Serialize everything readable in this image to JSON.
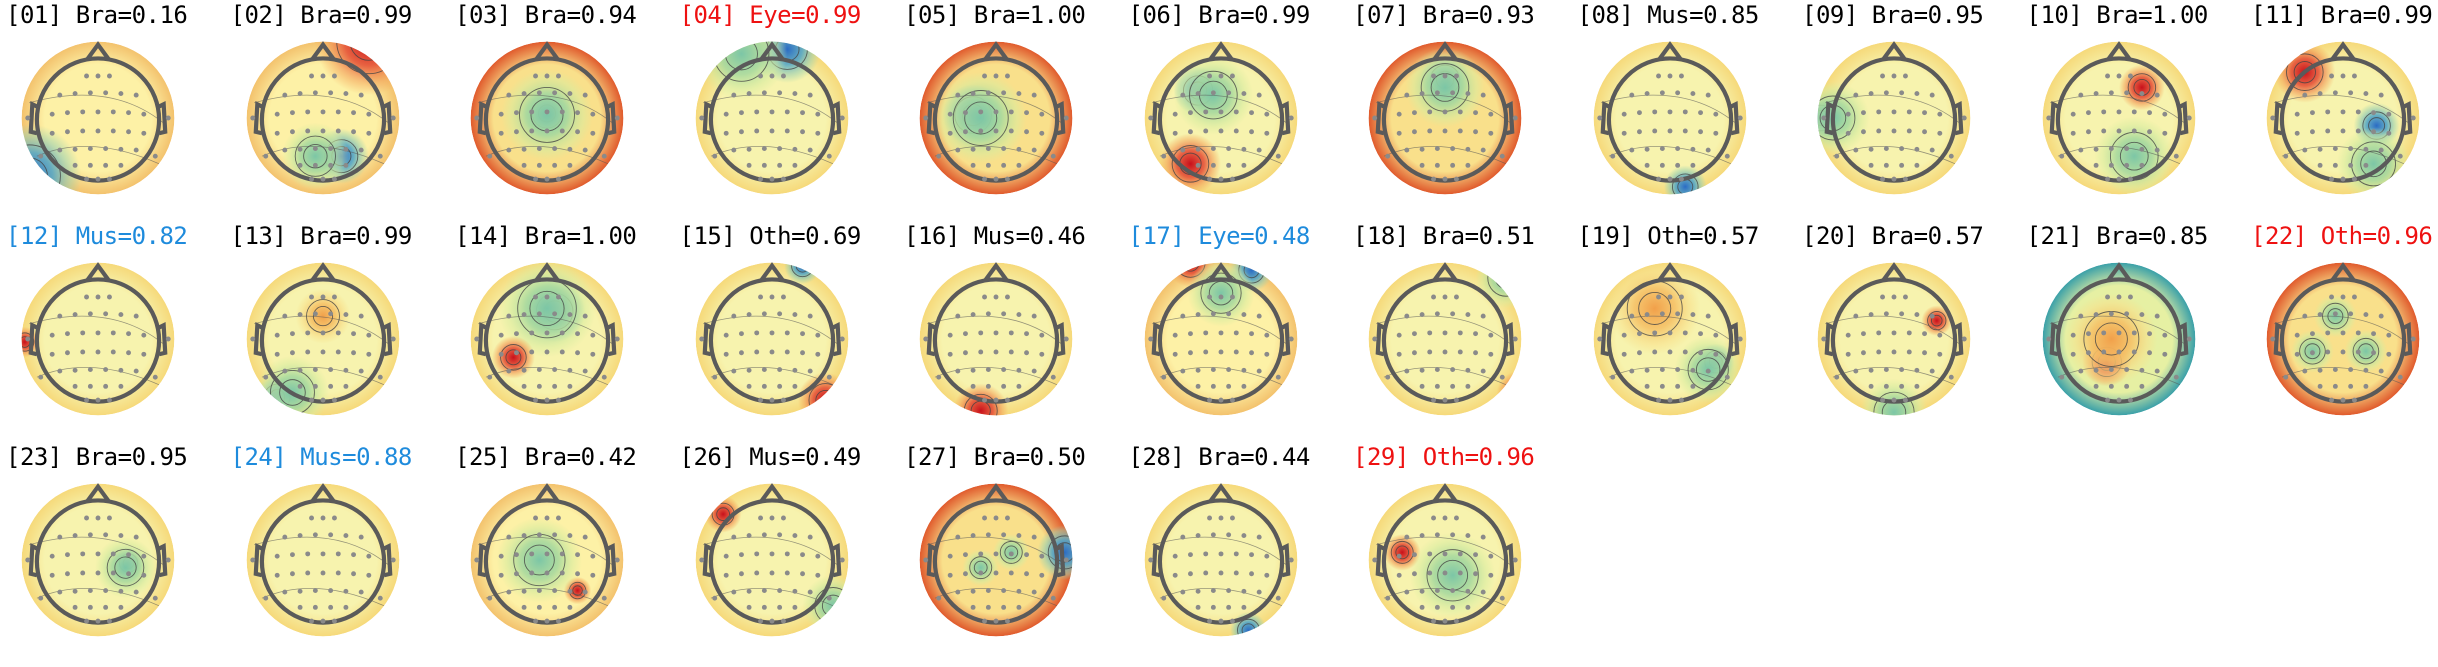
{
  "components": [
    {
      "idx": "[01]",
      "cls": "Bra",
      "p": "0.16",
      "color": "black",
      "theme": "warm",
      "blobs": [
        {
          "c": "blue",
          "dx": 0.05,
          "dy": 0.88,
          "s": 0.34
        }
      ]
    },
    {
      "idx": "[02]",
      "cls": "Bra",
      "p": "0.99",
      "color": "black",
      "theme": "warm",
      "blobs": [
        {
          "c": "red",
          "dx": 0.8,
          "dy": 0.0,
          "s": 0.35
        },
        {
          "c": "blue",
          "dx": 0.62,
          "dy": 0.75,
          "s": 0.18
        },
        {
          "c": "green",
          "dx": 0.45,
          "dy": 0.75,
          "s": 0.22
        }
      ]
    },
    {
      "idx": "[03]",
      "cls": "Bra",
      "p": "0.94",
      "color": "black",
      "theme": "hot",
      "blobs": [
        {
          "c": "blue",
          "dx": 0.5,
          "dy": 0.47,
          "s": 0.16
        },
        {
          "c": "green",
          "dx": 0.5,
          "dy": 0.48,
          "s": 0.3
        }
      ]
    },
    {
      "idx": "[04]",
      "cls": "Eye",
      "p": "0.99",
      "color": "red",
      "theme": "pale",
      "blobs": [
        {
          "c": "blue",
          "dx": 0.6,
          "dy": 0.05,
          "s": 0.22
        },
        {
          "c": "green",
          "dx": 0.3,
          "dy": 0.08,
          "s": 0.3
        }
      ]
    },
    {
      "idx": "[05]",
      "cls": "Bra",
      "p": "1.00",
      "color": "black",
      "theme": "hot",
      "blobs": [
        {
          "c": "blue",
          "dx": 0.35,
          "dy": 0.48,
          "s": 0.2
        },
        {
          "c": "green",
          "dx": 0.4,
          "dy": 0.5,
          "s": 0.3
        }
      ]
    },
    {
      "idx": "[06]",
      "cls": "Bra",
      "p": "0.99",
      "color": "black",
      "theme": "pale",
      "blobs": [
        {
          "c": "blue",
          "dx": 0.35,
          "dy": 0.32,
          "s": 0.16
        },
        {
          "c": "green",
          "dx": 0.45,
          "dy": 0.35,
          "s": 0.26
        },
        {
          "c": "red",
          "dx": 0.3,
          "dy": 0.8,
          "s": 0.2
        }
      ]
    },
    {
      "idx": "[07]",
      "cls": "Bra",
      "p": "0.93",
      "color": "black",
      "theme": "hot",
      "blobs": [
        {
          "c": "blue",
          "dx": 0.5,
          "dy": 0.25,
          "s": 0.16
        },
        {
          "c": "green",
          "dx": 0.5,
          "dy": 0.3,
          "s": 0.26
        }
      ]
    },
    {
      "idx": "[08]",
      "cls": "Mus",
      "p": "0.85",
      "color": "black",
      "theme": "pale",
      "blobs": [
        {
          "c": "blue",
          "dx": 0.6,
          "dy": 0.95,
          "s": 0.14
        }
      ]
    },
    {
      "idx": "[09]",
      "cls": "Bra",
      "p": "0.95",
      "color": "black",
      "theme": "pale",
      "blobs": [
        {
          "c": "blue",
          "dx": 0.02,
          "dy": 0.5,
          "s": 0.14
        },
        {
          "c": "green",
          "dx": 0.1,
          "dy": 0.5,
          "s": 0.24
        }
      ]
    },
    {
      "idx": "[10]",
      "cls": "Bra",
      "p": "1.00",
      "color": "black",
      "theme": "pale",
      "blobs": [
        {
          "c": "red",
          "dx": 0.65,
          "dy": 0.3,
          "s": 0.15
        },
        {
          "c": "green",
          "dx": 0.6,
          "dy": 0.75,
          "s": 0.26
        }
      ]
    },
    {
      "idx": "[11]",
      "cls": "Bra",
      "p": "0.99",
      "color": "black",
      "theme": "pale",
      "blobs": [
        {
          "c": "red",
          "dx": 0.25,
          "dy": 0.2,
          "s": 0.2
        },
        {
          "c": "blue",
          "dx": 0.72,
          "dy": 0.55,
          "s": 0.15
        },
        {
          "c": "green",
          "dx": 0.7,
          "dy": 0.8,
          "s": 0.24
        }
      ]
    },
    {
      "idx": "[12]",
      "cls": "Mus",
      "p": "0.82",
      "color": "blue",
      "theme": "pale",
      "blobs": [
        {
          "c": "red",
          "dx": 0.02,
          "dy": 0.52,
          "s": 0.1
        }
      ]
    },
    {
      "idx": "[13]",
      "cls": "Bra",
      "p": "0.99",
      "color": "black",
      "theme": "pale",
      "blobs": [
        {
          "c": "blue",
          "dx": 0.2,
          "dy": 0.88,
          "s": 0.14
        },
        {
          "c": "green",
          "dx": 0.3,
          "dy": 0.85,
          "s": 0.24
        },
        {
          "c": "orange",
          "dx": 0.5,
          "dy": 0.35,
          "s": 0.18
        }
      ]
    },
    {
      "idx": "[14]",
      "cls": "Bra",
      "p": "1.00",
      "color": "black",
      "theme": "pale",
      "blobs": [
        {
          "c": "blue",
          "dx": 0.55,
          "dy": 0.32,
          "s": 0.2
        },
        {
          "c": "green",
          "dx": 0.5,
          "dy": 0.3,
          "s": 0.32
        },
        {
          "c": "red",
          "dx": 0.28,
          "dy": 0.62,
          "s": 0.14
        }
      ]
    },
    {
      "idx": "[15]",
      "cls": "Oth",
      "p": "0.69",
      "color": "black",
      "theme": "pale",
      "blobs": [
        {
          "c": "blue",
          "dx": 0.7,
          "dy": 0.02,
          "s": 0.12
        },
        {
          "c": "red",
          "dx": 0.85,
          "dy": 0.9,
          "s": 0.18
        }
      ]
    },
    {
      "idx": "[16]",
      "cls": "Mus",
      "p": "0.46",
      "color": "black",
      "theme": "pale",
      "blobs": [
        {
          "c": "red",
          "dx": 0.4,
          "dy": 0.97,
          "s": 0.18
        }
      ]
    },
    {
      "idx": "[17]",
      "cls": "Eye",
      "p": "0.48",
      "color": "blue",
      "theme": "warm",
      "blobs": [
        {
          "c": "red",
          "dx": 0.3,
          "dy": 0.0,
          "s": 0.16
        },
        {
          "c": "blue",
          "dx": 0.7,
          "dy": 0.05,
          "s": 0.14
        },
        {
          "c": "green",
          "dx": 0.5,
          "dy": 0.2,
          "s": 0.22
        }
      ]
    },
    {
      "idx": "[18]",
      "cls": "Bra",
      "p": "0.51",
      "color": "black",
      "theme": "pale",
      "blobs": [
        {
          "c": "red",
          "dx": 0.98,
          "dy": 0.85,
          "s": 0.14
        },
        {
          "c": "green",
          "dx": 0.9,
          "dy": 0.1,
          "s": 0.2
        }
      ]
    },
    {
      "idx": "[19]",
      "cls": "Oth",
      "p": "0.57",
      "color": "black",
      "theme": "pale",
      "blobs": [
        {
          "c": "blue",
          "dx": 0.8,
          "dy": 0.65,
          "s": 0.12
        },
        {
          "c": "green",
          "dx": 0.75,
          "dy": 0.7,
          "s": 0.22
        },
        {
          "c": "orange",
          "dx": 0.4,
          "dy": 0.3,
          "s": 0.3
        }
      ]
    },
    {
      "idx": "[20]",
      "cls": "Bra",
      "p": "0.57",
      "color": "black",
      "theme": "pale",
      "blobs": [
        {
          "c": "red",
          "dx": 0.78,
          "dy": 0.38,
          "s": 0.1
        },
        {
          "c": "green",
          "dx": 0.5,
          "dy": 0.98,
          "s": 0.22
        }
      ]
    },
    {
      "idx": "[21]",
      "cls": "Bra",
      "p": "0.85",
      "color": "black",
      "theme": "cool",
      "blobs": [
        {
          "c": "red",
          "dx": 0.42,
          "dy": 0.65,
          "s": 0.16
        },
        {
          "c": "orange",
          "dx": 0.45,
          "dy": 0.5,
          "s": 0.3
        }
      ]
    },
    {
      "idx": "[22]",
      "cls": "Oth",
      "p": "0.96",
      "color": "red",
      "theme": "hot",
      "blobs": [
        {
          "c": "green",
          "dx": 0.3,
          "dy": 0.58,
          "s": 0.14
        },
        {
          "c": "green",
          "dx": 0.65,
          "dy": 0.58,
          "s": 0.14
        },
        {
          "c": "green",
          "dx": 0.45,
          "dy": 0.35,
          "s": 0.14
        }
      ]
    },
    {
      "idx": "[23]",
      "cls": "Bra",
      "p": "0.95",
      "color": "black",
      "theme": "pale",
      "blobs": [
        {
          "c": "blue",
          "dx": 0.7,
          "dy": 0.52,
          "s": 0.1
        },
        {
          "c": "green",
          "dx": 0.68,
          "dy": 0.55,
          "s": 0.2
        }
      ]
    },
    {
      "idx": "[24]",
      "cls": "Mus",
      "p": "0.88",
      "color": "blue",
      "theme": "pale",
      "blobs": [
        {
          "c": "red",
          "dx": 0.95,
          "dy": 0.1,
          "s": 0.12
        }
      ]
    },
    {
      "idx": "[25]",
      "cls": "Bra",
      "p": "0.42",
      "color": "black",
      "theme": "warm",
      "blobs": [
        {
          "c": "red",
          "dx": 0.7,
          "dy": 0.7,
          "s": 0.09
        },
        {
          "c": "green",
          "dx": 0.45,
          "dy": 0.5,
          "s": 0.28
        }
      ]
    },
    {
      "idx": "[26]",
      "cls": "Mus",
      "p": "0.49",
      "color": "black",
      "theme": "pale",
      "blobs": [
        {
          "c": "red",
          "dx": 0.18,
          "dy": 0.2,
          "s": 0.12
        },
        {
          "c": "green",
          "dx": 0.9,
          "dy": 0.8,
          "s": 0.2
        }
      ]
    },
    {
      "idx": "[27]",
      "cls": "Bra",
      "p": "0.50",
      "color": "black",
      "theme": "hot",
      "blobs": [
        {
          "c": "blue",
          "dx": 0.95,
          "dy": 0.45,
          "s": 0.18
        },
        {
          "c": "green",
          "dx": 0.4,
          "dy": 0.55,
          "s": 0.12
        },
        {
          "c": "green",
          "dx": 0.6,
          "dy": 0.45,
          "s": 0.12
        }
      ]
    },
    {
      "idx": "[28]",
      "cls": "Bra",
      "p": "0.44",
      "color": "black",
      "theme": "pale",
      "blobs": [
        {
          "c": "blue",
          "dx": 0.68,
          "dy": 0.96,
          "s": 0.12
        }
      ]
    },
    {
      "idx": "[29]",
      "cls": "Oth",
      "p": "0.96",
      "color": "red",
      "theme": "pale",
      "blobs": [
        {
          "c": "red",
          "dx": 0.22,
          "dy": 0.45,
          "s": 0.12
        },
        {
          "c": "green",
          "dx": 0.55,
          "dy": 0.6,
          "s": 0.28
        }
      ]
    }
  ]
}
